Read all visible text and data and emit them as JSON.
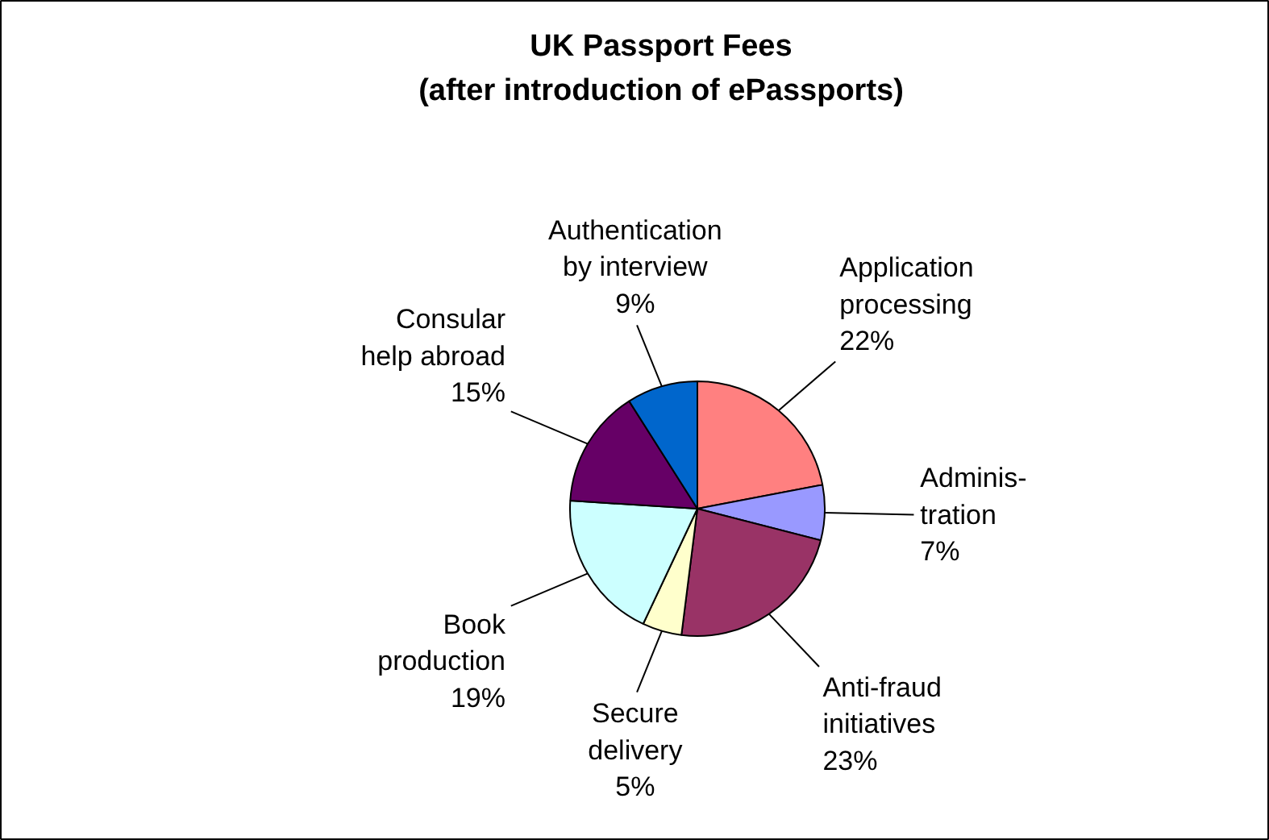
{
  "chart_data": {
    "type": "pie",
    "title": "UK Passport Fees\n(after introduction of ePassports)",
    "categories": [
      "Application\nprocessing",
      "Adminis-\ntration",
      "Anti-fraud\ninitiatives",
      "Secure\ndelivery",
      "Book\nproduction",
      "Consular\nhelp abroad",
      "Authentication\nby interview"
    ],
    "values": [
      22,
      7,
      23,
      5,
      19,
      15,
      9
    ],
    "value_labels": [
      "22%",
      "7%",
      "23%",
      "5%",
      "19%",
      "15%",
      "9%"
    ],
    "colors": [
      "#ff8080",
      "#9999ff",
      "#993366",
      "#ffffcc",
      "#ccffff",
      "#660066",
      "#0066cc"
    ]
  }
}
